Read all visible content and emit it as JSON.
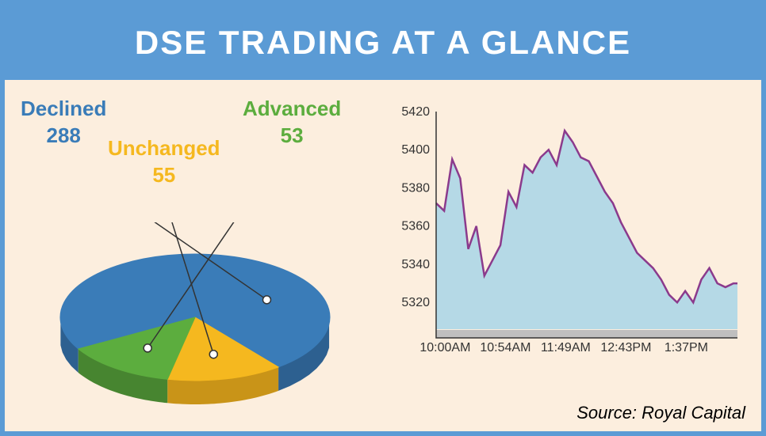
{
  "title": "DSE TRADING AT A GLANCE",
  "colors": {
    "border": "#5b9bd5",
    "header_bg": "#5b9bd5",
    "content_bg": "#fceede",
    "title_text": "#ffffff"
  },
  "pie_chart": {
    "type": "pie",
    "slices": [
      {
        "label": "Declined",
        "value": 288,
        "color": "#3a7cb8",
        "color_side": "#2d6090",
        "label_color": "#3a7cb8"
      },
      {
        "label": "Unchanged",
        "value": 55,
        "color": "#f5b81f",
        "color_side": "#c99418",
        "label_color": "#f5b81f"
      },
      {
        "label": "Advanced",
        "value": 53,
        "color": "#5cad3e",
        "color_side": "#478530",
        "label_color": "#5cad3e"
      }
    ],
    "labels": {
      "declined": {
        "text1": "Declined",
        "text2": "288"
      },
      "unchanged": {
        "text1": "Unchanged",
        "text2": "55"
      },
      "advanced": {
        "text1": "Advanced",
        "text2": "53"
      }
    }
  },
  "line_chart": {
    "type": "area",
    "ylim": [
      5306,
      5420
    ],
    "ytick_step": 20,
    "yticks": [
      5320,
      5340,
      5360,
      5380,
      5400,
      5420
    ],
    "xticks": [
      "10:00AM",
      "10:54AM",
      "11:49AM",
      "12:43PM",
      "1:37PM"
    ],
    "line_color": "#8b3a8c",
    "line_width": 2.5,
    "fill_color": "#a8d5e8",
    "fill_opacity": 0.85,
    "background_color": "#fceede",
    "axis_color": "#333333",
    "tick_font_size": 16,
    "data": [
      {
        "x": 0,
        "y": 5372
      },
      {
        "x": 4,
        "y": 5368
      },
      {
        "x": 8,
        "y": 5395
      },
      {
        "x": 12,
        "y": 5385
      },
      {
        "x": 16,
        "y": 5348
      },
      {
        "x": 20,
        "y": 5360
      },
      {
        "x": 24,
        "y": 5334
      },
      {
        "x": 28,
        "y": 5342
      },
      {
        "x": 32,
        "y": 5350
      },
      {
        "x": 36,
        "y": 5378
      },
      {
        "x": 40,
        "y": 5370
      },
      {
        "x": 44,
        "y": 5392
      },
      {
        "x": 48,
        "y": 5388
      },
      {
        "x": 52,
        "y": 5396
      },
      {
        "x": 56,
        "y": 5400
      },
      {
        "x": 60,
        "y": 5392
      },
      {
        "x": 64,
        "y": 5410
      },
      {
        "x": 68,
        "y": 5404
      },
      {
        "x": 72,
        "y": 5396
      },
      {
        "x": 76,
        "y": 5394
      },
      {
        "x": 80,
        "y": 5386
      },
      {
        "x": 84,
        "y": 5378
      },
      {
        "x": 88,
        "y": 5372
      },
      {
        "x": 92,
        "y": 5362
      },
      {
        "x": 96,
        "y": 5354
      },
      {
        "x": 100,
        "y": 5346
      },
      {
        "x": 104,
        "y": 5342
      },
      {
        "x": 108,
        "y": 5338
      },
      {
        "x": 112,
        "y": 5332
      },
      {
        "x": 116,
        "y": 5324
      },
      {
        "x": 120,
        "y": 5320
      },
      {
        "x": 124,
        "y": 5326
      },
      {
        "x": 128,
        "y": 5320
      },
      {
        "x": 132,
        "y": 5332
      },
      {
        "x": 136,
        "y": 5338
      },
      {
        "x": 140,
        "y": 5330
      },
      {
        "x": 144,
        "y": 5328
      },
      {
        "x": 148,
        "y": 5330
      },
      {
        "x": 150,
        "y": 5330
      }
    ]
  },
  "source": "Source: Royal Capital"
}
